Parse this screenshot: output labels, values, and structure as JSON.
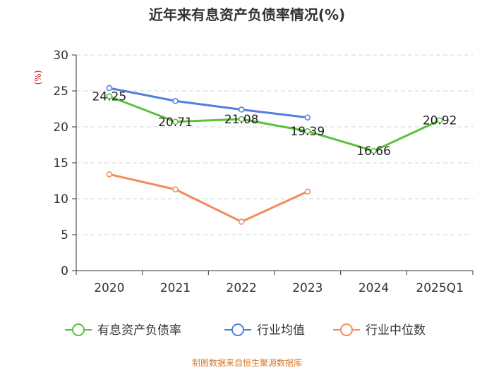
{
  "chart_data": {
    "type": "line",
    "title": "近年来有息资产负债率情况(%)",
    "ylabel": "(%)",
    "ylim": [
      0,
      30
    ],
    "yticks": [
      0,
      5,
      10,
      15,
      20,
      25,
      30
    ],
    "categories": [
      "2020",
      "2021",
      "2022",
      "2023",
      "2024",
      "2025Q1"
    ],
    "series": [
      {
        "name": "有息资产负债率",
        "color": "#5ac13a",
        "values": [
          24.25,
          20.71,
          21.08,
          19.39,
          16.66,
          20.92
        ],
        "labels": [
          "24.25",
          "20.71",
          "21.08",
          "19.39",
          "16.66",
          "20.92"
        ]
      },
      {
        "name": "行业均值",
        "color": "#4f7fdc",
        "values": [
          25.4,
          23.6,
          22.4,
          21.3,
          null,
          null
        ]
      },
      {
        "name": "行业中位数",
        "color": "#f28c5b",
        "values": [
          13.4,
          11.3,
          6.8,
          11.0,
          null,
          null
        ]
      }
    ],
    "grid": true,
    "legend": "bottom"
  },
  "source_text": "制图数据来自恒生聚源数据库"
}
